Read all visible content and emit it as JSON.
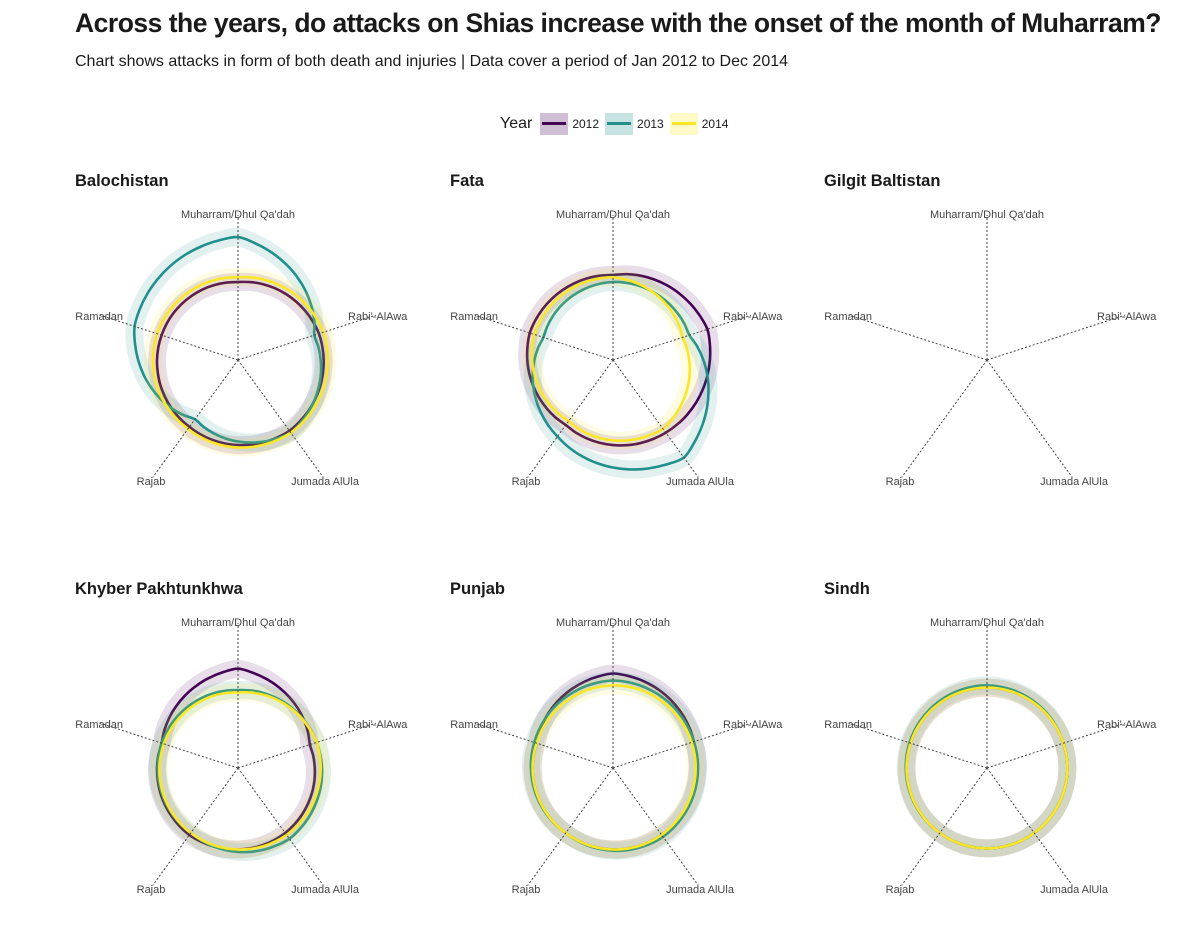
{
  "title": "Across the years, do attacks on Shias increase with the onset of the month of Muharram?",
  "subtitle": "Chart shows attacks in form of both death and injuries | Data cover a period of Jan 2012  to Dec 2014",
  "legend": {
    "title": "Year",
    "items": [
      {
        "label": "2012",
        "color": "#440154"
      },
      {
        "label": "2013",
        "color": "#21908C"
      },
      {
        "label": "2014",
        "color": "#FDE725"
      }
    ]
  },
  "chart_data": {
    "type": "radar",
    "axes": [
      "Muharram/Dhul Qa'dah",
      "Rabi'-AlAwa",
      "Jumada AlUla",
      "Rajab",
      "Ramadan"
    ],
    "legend_position": "top",
    "grid": false,
    "series_names": [
      "2012",
      "2013",
      "2014"
    ],
    "panels": [
      {
        "name": "Balochistan",
        "has_data": true,
        "series": [
          {
            "name": "2012",
            "values": [
              66,
              72,
              74,
              70,
              68
            ]
          },
          {
            "name": "2013",
            "values": [
              104,
              68,
              76,
              62,
              92
            ]
          },
          {
            "name": "2014",
            "values": [
              70,
              76,
              76,
              72,
              72
            ]
          }
        ]
      },
      {
        "name": "Fata",
        "has_data": true,
        "series": [
          {
            "name": "2012",
            "values": [
              72,
              84,
              76,
              68,
              74
            ]
          },
          {
            "name": "2013",
            "values": [
              66,
              68,
              102,
              80,
              62
            ]
          },
          {
            "name": "2014",
            "values": [
              70,
              62,
              72,
              64,
              70
            ]
          }
        ]
      },
      {
        "name": "Gilgit Baltistan",
        "has_data": false,
        "series": []
      },
      {
        "name": "Khyber Pakhtunkhwa",
        "has_data": true,
        "series": [
          {
            "name": "2012",
            "values": [
              84,
              64,
              68,
              70,
              68
            ]
          },
          {
            "name": "2013",
            "values": [
              66,
              70,
              74,
              68,
              68
            ]
          },
          {
            "name": "2014",
            "values": [
              64,
              70,
              70,
              68,
              66
            ]
          }
        ]
      },
      {
        "name": "Punjab",
        "has_data": true,
        "series": [
          {
            "name": "2012",
            "values": [
              80,
              72,
              70,
              68,
              68
            ]
          },
          {
            "name": "2013",
            "values": [
              74,
              72,
              72,
              68,
              70
            ]
          },
          {
            "name": "2014",
            "values": [
              70,
              70,
              70,
              68,
              68
            ]
          }
        ]
      },
      {
        "name": "Sindh",
        "has_data": true,
        "series": [
          {
            "name": "2012",
            "values": [
              68,
              68,
              68,
              68,
              68
            ]
          },
          {
            "name": "2013",
            "values": [
              70,
              68,
              68,
              68,
              69
            ]
          },
          {
            "name": "2014",
            "values": [
              68,
              68,
              68,
              68,
              68
            ]
          }
        ]
      }
    ]
  }
}
